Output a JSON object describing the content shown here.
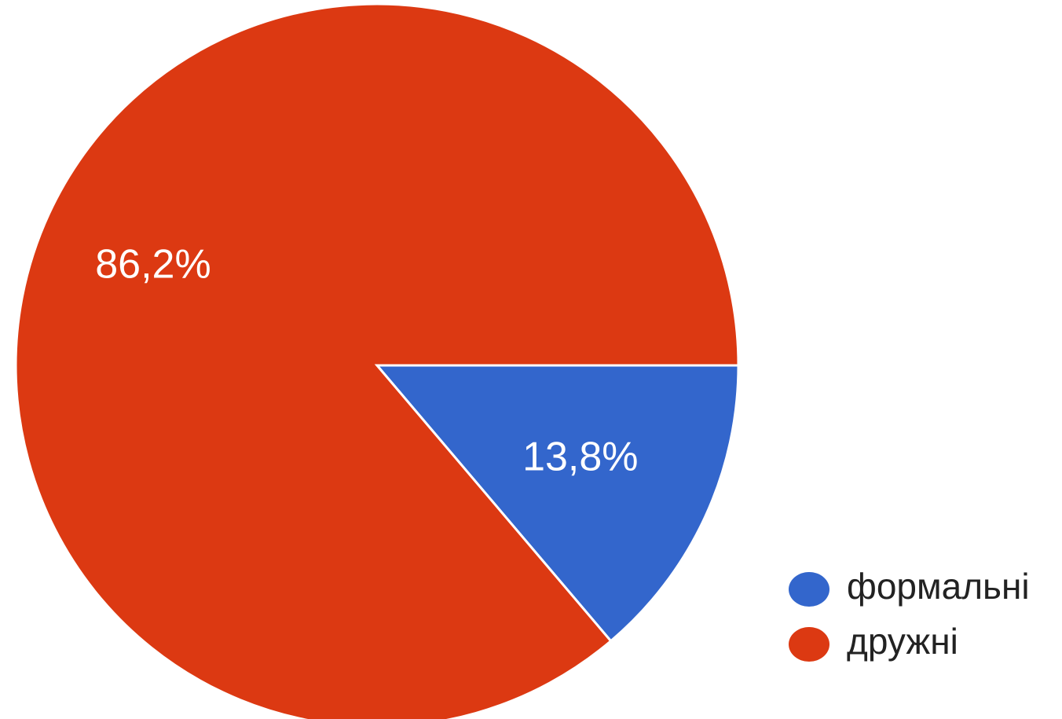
{
  "chart_data": {
    "type": "pie",
    "slices": [
      {
        "name": "формальні",
        "value": 13.8,
        "label": "13,8%",
        "color": "#3366cc"
      },
      {
        "name": "дружні",
        "value": 86.2,
        "label": "86,2%",
        "color": "#dc3912"
      }
    ],
    "legend": {
      "placement": "right-bottom",
      "entries": [
        "формальні",
        "дружні"
      ]
    },
    "start_direction": "east",
    "order": "clockwise"
  }
}
